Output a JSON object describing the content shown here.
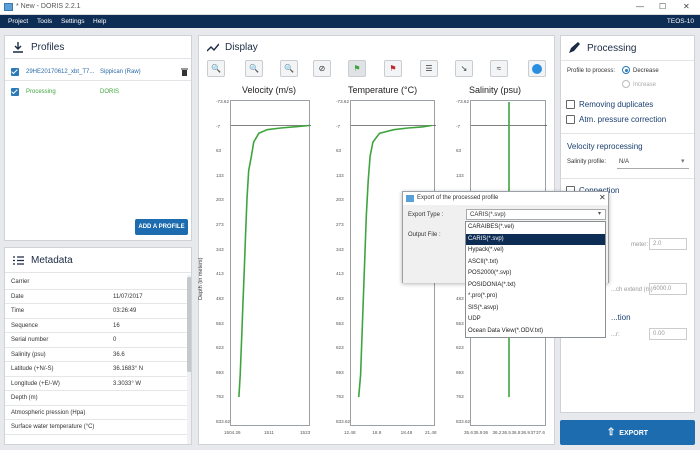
{
  "window": {
    "title": "* New - DORIS 2.2.1",
    "controls": [
      "—",
      "☐",
      "✕"
    ]
  },
  "menu": {
    "items": [
      "Project",
      "Tools",
      "Settings",
      "Help"
    ],
    "right": "TEOS-10"
  },
  "profiles": {
    "title": "Profiles",
    "items": [
      {
        "name": "29HE20170612_xbt_T7...",
        "source": "Sippican (Raw)"
      },
      {
        "name": "Processing",
        "source": "DORIS"
      }
    ],
    "add_button": "ADD A PROFILE"
  },
  "metadata": {
    "title": "Metadata",
    "rows": [
      {
        "k": "Carrier",
        "v": ""
      },
      {
        "k": "Date",
        "v": "11/07/2017"
      },
      {
        "k": "Time",
        "v": "03:26:49"
      },
      {
        "k": "Sequence",
        "v": "16"
      },
      {
        "k": "Serial number",
        "v": "0"
      },
      {
        "k": "Salinity (psu)",
        "v": "36.6"
      },
      {
        "k": "Latitude (+N/-S)",
        "v": "36.1683° N"
      },
      {
        "k": "Longitude (+E/-W)",
        "v": "3.3033° W"
      },
      {
        "k": "Depth (m)",
        "v": ""
      },
      {
        "k": "Atmospheric pression (Hpa)",
        "v": ""
      },
      {
        "k": "Surface water temperature (°C)",
        "v": ""
      }
    ]
  },
  "display": {
    "title": "Display",
    "ylabel": "Depth (in meters)",
    "yticks": [
      "-73.62",
      "-7",
      "63",
      "133",
      "203",
      "273",
      "343",
      "413",
      "483",
      "553",
      "623",
      "693",
      "763",
      "833.62"
    ],
    "charts": [
      {
        "title": "Velocity (m/s)",
        "xticks": [
          "1504.26",
          "1511",
          "1523"
        ]
      },
      {
        "title": "Temperature (°C)",
        "xticks": [
          "12.48",
          "18.9",
          "18.48",
          "21.48"
        ]
      },
      {
        "title": "Salinity (psu)",
        "xticks": [
          "35.6",
          "35.9",
          "36",
          "36.2",
          "36.5",
          "36.8",
          "36.9",
          "37",
          "37.6"
        ]
      }
    ]
  },
  "chart_data": [
    {
      "type": "line",
      "title": "Velocity (m/s)",
      "ylabel": "Depth (in meters)",
      "xlim": [
        1504.26,
        1528
      ],
      "ylim": [
        -73.62,
        833.62
      ],
      "y_inverted": true,
      "series": [
        {
          "x": [
            1527.5,
            1524,
            1519,
            1515,
            1512.5,
            1511,
            1510.3,
            1509.5,
            1509,
            1508.6,
            1508.2,
            1507.8,
            1507.4,
            1507,
            1506.6
          ],
          "y": [
            -7,
            -4,
            0,
            5,
            15,
            40,
            80,
            120,
            200,
            300,
            400,
            500,
            600,
            700,
            763
          ]
        }
      ]
    },
    {
      "type": "line",
      "title": "Temperature (°C)",
      "ylabel": "Depth (in meters)",
      "xlim": [
        12.48,
        21.48
      ],
      "ylim": [
        -73.62,
        833.62
      ],
      "y_inverted": true,
      "series": [
        {
          "x": [
            21,
            20,
            18.5,
            17,
            15.5,
            14.8,
            14.5,
            14.3,
            14.1,
            13.9,
            13.7,
            13.5,
            13.3
          ],
          "y": [
            -7,
            -3,
            0,
            5,
            15,
            40,
            80,
            150,
            250,
            400,
            550,
            700,
            763
          ]
        }
      ]
    },
    {
      "type": "line",
      "title": "Salinity (psu)",
      "ylabel": "Depth (in meters)",
      "xlim": [
        35.6,
        37.6
      ],
      "ylim": [
        -73.62,
        833.62
      ],
      "y_inverted": true,
      "series": [
        {
          "x": [
            36.6,
            36.6
          ],
          "y": [
            -73.62,
            763
          ]
        }
      ]
    }
  ],
  "processing": {
    "title": "Processing",
    "profile_to_process": "Profile to process:",
    "decrease": "Decrease",
    "increase": "Increase",
    "removing_duplicates": "Removing duplicates",
    "atm_correction": "Atm. pressure correction",
    "velocity_reprocessing": "Velocity reprocessing",
    "salinity_profile": "Salinity profile:",
    "salinity_value": "N/A",
    "connection": "Connection",
    "meter_label": "meter:",
    "meter_value": "2.0",
    "extend_label": "...ch extend (m)",
    "extend_value": "6000.0",
    "last_section": "...tion",
    "last_label": "...r:",
    "last_value": "0.00",
    "export_button": "EXPORT"
  },
  "dialog": {
    "title": "Export of the processed profile",
    "export_type_label": "Export Type :",
    "output_file_label": "Output File :",
    "selected": "CARIS(*.svp)",
    "options": [
      "CARAIBES(*.vel)",
      "CARIS(*.svp)",
      "Hypack(*.vel)",
      "ASCII(*.txt)",
      "POS2000(*.svp)",
      "POSIDONIA(*.txt)",
      "*.pro(*.pro)",
      "SIS(*.asvp)",
      "UDP",
      "Ocean Data View(*.ODV.txt)"
    ]
  },
  "colors": {
    "accent": "#1e6cb0",
    "menubar": "#0d2d55",
    "curve": "#3fa43f",
    "selected_option": "#0d2d55"
  }
}
